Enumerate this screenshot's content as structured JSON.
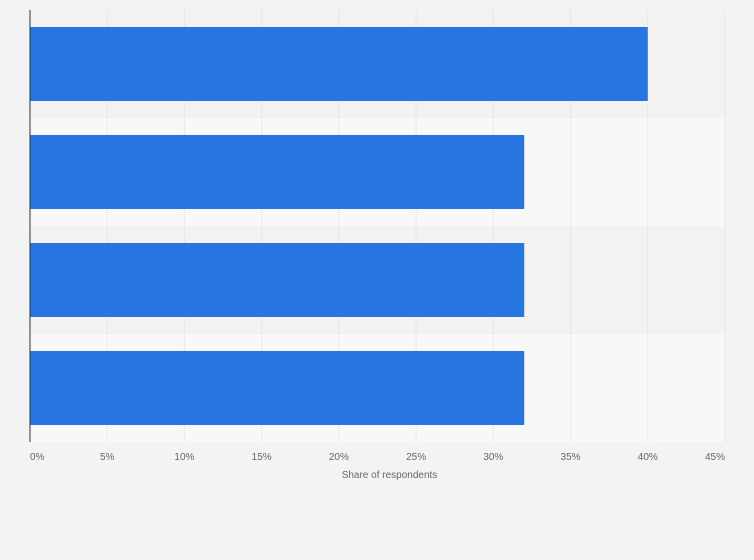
{
  "chart_data": {
    "type": "bar",
    "orientation": "horizontal",
    "categories": [
      "",
      "",
      "",
      ""
    ],
    "values": [
      40,
      32,
      32,
      32
    ],
    "xlabel": "Share of respondents",
    "ylabel": "",
    "xlim": [
      0,
      45
    ],
    "x_ticks": [
      0,
      5,
      10,
      15,
      20,
      25,
      30,
      35,
      40,
      45
    ],
    "tick_suffix": "%",
    "grid": true,
    "legend": "none"
  },
  "colors": {
    "bar": "#2775de",
    "band_even": "#f2f2f2",
    "band_odd": "#f8f8f8",
    "grid": "#dcdcdc",
    "axis": "#333333",
    "text": "#666666",
    "background": "#f3f3f3"
  }
}
